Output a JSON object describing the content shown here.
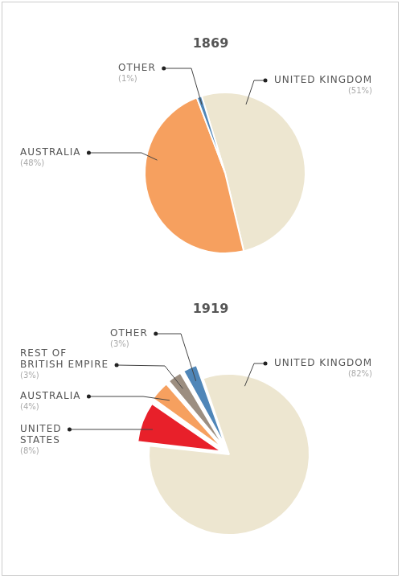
{
  "chart_data": [
    {
      "type": "pie",
      "title": "1869",
      "categories": [
        "UNITED KINGDOM",
        "AUSTRALIA",
        "OTHER"
      ],
      "values": [
        51,
        48,
        1
      ],
      "value_labels": [
        "(51%)",
        "(48%)",
        "(1%)"
      ],
      "colors": [
        "#ede6d0",
        "#f6a05f",
        "#4f86b8"
      ],
      "data_labels": true
    },
    {
      "type": "pie",
      "title": "1919",
      "categories": [
        "UNITED KINGDOM",
        "UNITED STATES",
        "AUSTRALIA",
        "REST OF BRITISH EMPIRE",
        "OTHER"
      ],
      "values": [
        82,
        8,
        4,
        3,
        3
      ],
      "value_labels": [
        "(82%)",
        "(8%)",
        "(4%)",
        "(3%)",
        "(3%)"
      ],
      "colors": [
        "#ede6d0",
        "#e8202a",
        "#f6a05f",
        "#9c8e80",
        "#4f86b8"
      ],
      "data_labels": true
    }
  ]
}
